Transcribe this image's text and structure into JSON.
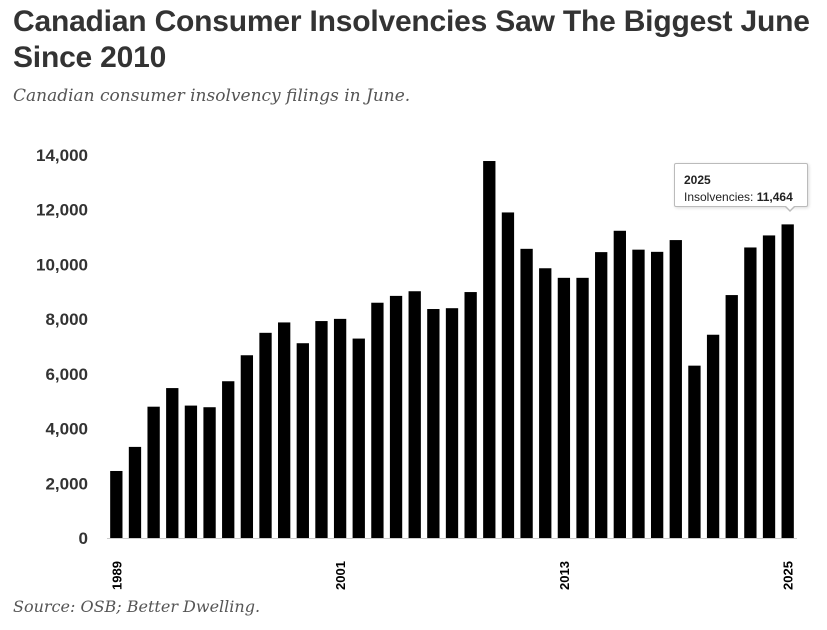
{
  "header": {
    "title": "Canadian Consumer Insolvencies Saw The Biggest June Since 2010",
    "subtitle": "Canadian consumer insolvency filings in June."
  },
  "footer": {
    "source": "Source: OSB; Better Dwelling."
  },
  "tooltip": {
    "year": "2025",
    "label": "Insolvencies:",
    "value": "11,464"
  },
  "chart_data": {
    "type": "bar",
    "title": "Canadian Consumer Insolvencies Saw The Biggest June Since 2010",
    "subtitle": "Canadian consumer insolvency filings in June.",
    "xlabel": "",
    "ylabel": "",
    "ylim": [
      0,
      14000
    ],
    "yticks": [
      0,
      2000,
      4000,
      6000,
      8000,
      10000,
      12000,
      14000
    ],
    "ytick_labels": [
      "0",
      "2,000",
      "4,000",
      "6,000",
      "8,000",
      "10,000",
      "12,000",
      "14,000"
    ],
    "xtick_labels": [
      "1989",
      "2001",
      "2013",
      "2025"
    ],
    "grid": false,
    "bar_color": "#000000",
    "categories": [
      "1989",
      "1990",
      "1991",
      "1992",
      "1993",
      "1994",
      "1995",
      "1996",
      "1997",
      "1998",
      "1999",
      "2000",
      "2001",
      "2002",
      "2003",
      "2004",
      "2005",
      "2006",
      "2007",
      "2008",
      "2009",
      "2010",
      "2011",
      "2012",
      "2013",
      "2014",
      "2015",
      "2016",
      "2017",
      "2018",
      "2019",
      "2020",
      "2021",
      "2022",
      "2023",
      "2024",
      "2025"
    ],
    "values": [
      2450,
      3330,
      4800,
      5480,
      4840,
      4780,
      5730,
      6680,
      7500,
      7880,
      7120,
      7930,
      8010,
      7290,
      8600,
      8850,
      9020,
      8370,
      8400,
      8990,
      13780,
      11900,
      10570,
      9860,
      9510,
      9510,
      10450,
      11230,
      10540,
      10460,
      10890,
      6300,
      7430,
      8880,
      10620,
      11060,
      11464
    ]
  }
}
